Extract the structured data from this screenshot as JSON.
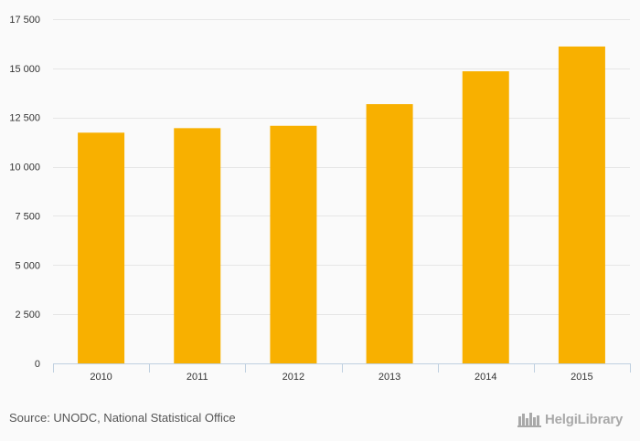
{
  "chart_data": {
    "type": "bar",
    "categories": [
      "2010",
      "2011",
      "2012",
      "2013",
      "2014",
      "2015"
    ],
    "values": [
      11730,
      11960,
      12080,
      13180,
      14850,
      16110
    ],
    "title": "",
    "xlabel": "",
    "ylabel": "",
    "ylim": [
      0,
      17500
    ],
    "yticks": [
      0,
      2500,
      5000,
      7500,
      10000,
      12500,
      15000,
      17500
    ],
    "ytick_labels": [
      "0",
      "2 500",
      "5 000",
      "7 500",
      "10 000",
      "12 500",
      "15 000",
      "17 500"
    ],
    "grid": true,
    "bar_color": "#f8b000"
  },
  "footer": {
    "source": "Source: UNODC, National Statistical Office"
  },
  "brand": {
    "text": "HelgiLibrary",
    "icon": "helgi-library-icon"
  }
}
